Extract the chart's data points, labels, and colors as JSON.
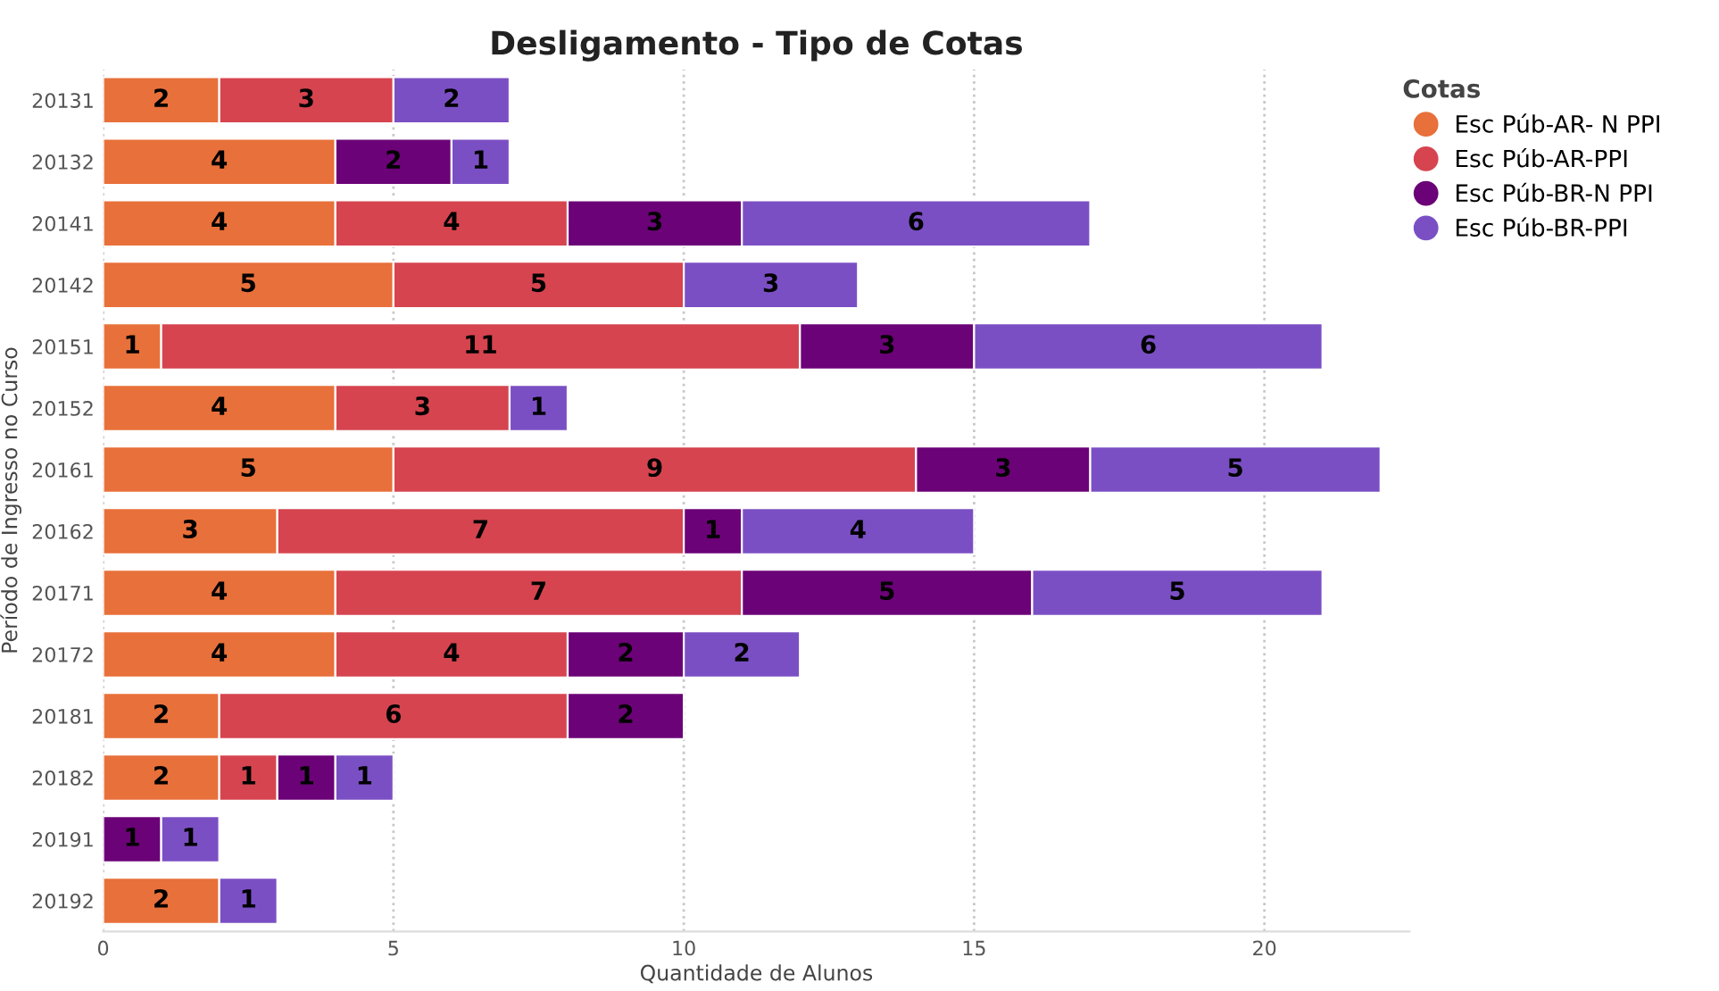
{
  "chart_data": {
    "type": "bar",
    "orientation": "horizontal",
    "stacked": true,
    "title": "Desligamento - Tipo de Cotas",
    "xlabel": "Quantidade de Alunos",
    "ylabel": "Período de Ingresso no Curso",
    "legend_title": "Cotas",
    "legend": "top right",
    "grid": "x",
    "data_labels": true,
    "categories": [
      "20131",
      "20132",
      "20141",
      "20142",
      "20151",
      "20152",
      "20161",
      "20162",
      "20171",
      "20172",
      "20181",
      "20182",
      "20191",
      "20192"
    ],
    "xlim": [
      0,
      22.5
    ],
    "xticks": [
      0,
      5,
      10,
      15,
      20
    ],
    "series": [
      {
        "name": "Esc Púb-AR- N PPI",
        "color": "#e8703a",
        "values": [
          2,
          4,
          4,
          5,
          1,
          4,
          5,
          3,
          4,
          4,
          2,
          2,
          null,
          2
        ]
      },
      {
        "name": "Esc Púb-AR-PPI",
        "color": "#d6444f",
        "values": [
          3,
          null,
          4,
          5,
          11,
          3,
          9,
          7,
          7,
          4,
          6,
          1,
          null,
          null
        ]
      },
      {
        "name": "Esc Púb-BR-N PPI",
        "color": "#6b0277",
        "values": [
          null,
          2,
          3,
          null,
          3,
          null,
          3,
          1,
          5,
          2,
          2,
          1,
          1,
          null
        ]
      },
      {
        "name": "Esc Púb-BR-PPI",
        "color": "#7b4fc4",
        "values": [
          2,
          1,
          6,
          3,
          6,
          1,
          5,
          4,
          5,
          2,
          null,
          1,
          1,
          1
        ]
      }
    ]
  }
}
